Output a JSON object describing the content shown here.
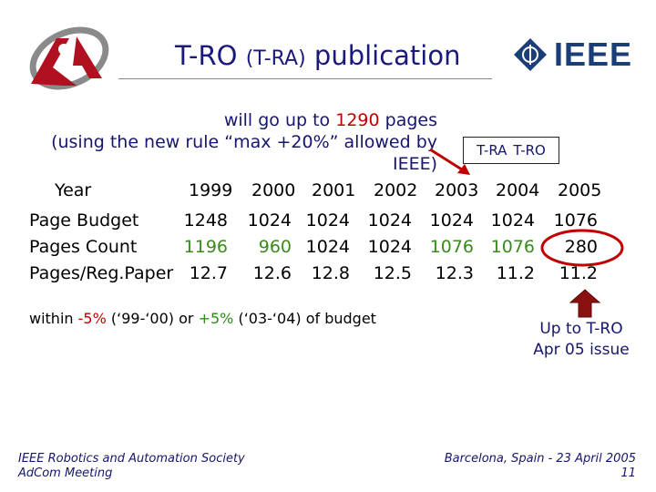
{
  "slide": {
    "title_main": "T-RO",
    "title_sub": "(T-RA)",
    "title_end": "publication",
    "intro_line1_pre": "will go up to",
    "intro_line1_value": "1290",
    "intro_line1_post": "pages",
    "intro_line2": "(using the new rule “max +20%” allowed by IEEE)",
    "legend_a": "T-RA",
    "legend_b": "T-RO",
    "ieee_logo_text": "IEEE",
    "logo_mark": "RA"
  },
  "table": {
    "years_label": "Year",
    "years": [
      "1999",
      "2000",
      "2001",
      "2002",
      "2003",
      "2004",
      "2005"
    ],
    "rows": [
      {
        "label": "Page Budget",
        "values": [
          "1248",
          "1024",
          "1024",
          "1024",
          "1024",
          "1024",
          "1076"
        ]
      },
      {
        "label": "Pages Count",
        "values": [
          "1196",
          "960",
          "1024",
          "1024",
          "1076",
          "1076",
          "280"
        ]
      },
      {
        "label": "Pages/Reg.Paper",
        "values": [
          "12.7",
          "12.6",
          "12.8",
          "12.5",
          "12.3",
          "11.2",
          "11.2"
        ]
      }
    ]
  },
  "note": {
    "pre": "within",
    "low": "-5%",
    "mid": "(‘99-‘00) or",
    "high": "+5%",
    "post": "(‘03-‘04) of budget"
  },
  "callout": {
    "line1": "Up to T-RO",
    "line2": "Apr 05 issue"
  },
  "footer": {
    "left_line1": "IEEE Robotics and Automation Society",
    "left_line2": "AdCom Meeting",
    "right_line1": "Barcelona, Spain - 23 April 2005",
    "right_line2": "11"
  },
  "colors": {
    "title": "#1a1a7a",
    "highlight_red": "#c00000",
    "highlight_green": "#3a8a1e",
    "ieee_blue": "#1a3e7a"
  }
}
